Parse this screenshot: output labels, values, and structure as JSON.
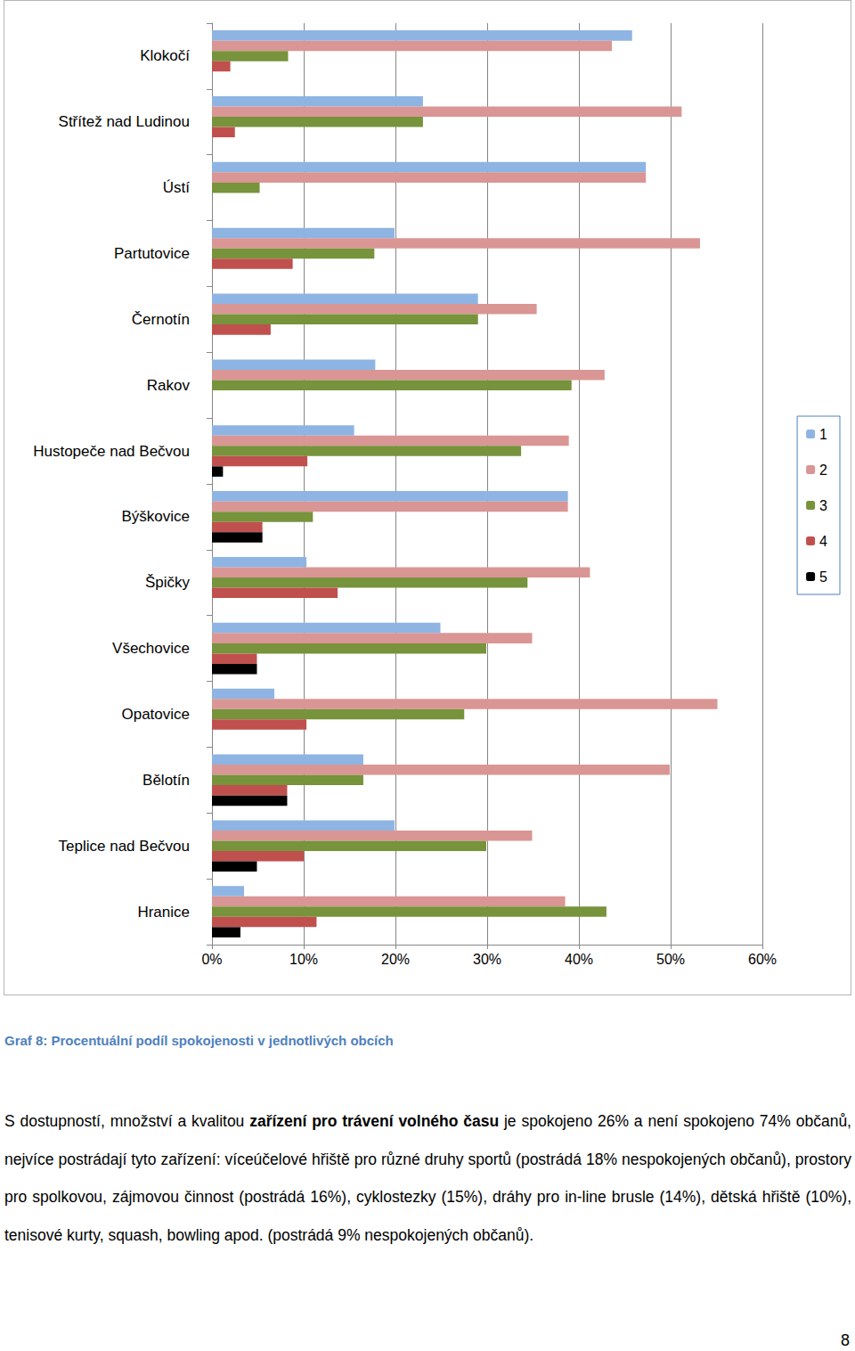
{
  "chart_data": {
    "type": "bar",
    "title": "Graf 8: Procentuální podíl spokojenosti v jednotlivých obcích",
    "orientation": "horizontal",
    "categories": [
      "Klokočí",
      "Střítež nad Ludinou",
      "Ústí",
      "Partutovice",
      "Černotín",
      "Rakov",
      "Hustopeče nad Bečvou",
      "Býškovice",
      "Špičky",
      "Všechovice",
      "Opatovice",
      "Bělotín",
      "Teplice nad Bečvou",
      "Hranice"
    ],
    "series": [
      {
        "name": "1",
        "color": "#8eb4e3",
        "values": [
          45.8,
          23.0,
          47.3,
          19.9,
          29.0,
          17.8,
          15.5,
          38.8,
          10.3,
          24.9,
          6.8,
          16.5,
          19.9,
          3.5
        ]
      },
      {
        "name": "2",
        "color": "#d99694",
        "values": [
          43.6,
          51.2,
          47.3,
          53.2,
          35.4,
          42.8,
          38.9,
          38.8,
          41.2,
          34.9,
          55.1,
          49.9,
          34.9,
          38.5
        ]
      },
      {
        "name": "3",
        "color": "#77933c",
        "values": [
          8.3,
          23.0,
          5.2,
          17.7,
          29.0,
          39.2,
          33.7,
          11.0,
          34.4,
          29.9,
          27.5,
          16.5,
          29.9,
          43.0
        ]
      },
      {
        "name": "4",
        "color": "#c0504d",
        "values": [
          2.0,
          2.5,
          0,
          8.8,
          6.4,
          0,
          10.4,
          5.5,
          13.7,
          4.9,
          10.3,
          8.2,
          10.0,
          11.4
        ]
      },
      {
        "name": "5",
        "color": "#000000",
        "values": [
          0,
          0,
          0,
          0,
          0,
          0,
          1.2,
          5.5,
          0,
          4.9,
          0,
          8.2,
          4.9,
          3.1
        ]
      }
    ],
    "xlim": [
      0,
      60
    ],
    "xticks": [
      {
        "value": 0,
        "label": "0%"
      },
      {
        "value": 10,
        "label": "10%"
      },
      {
        "value": 20,
        "label": "20%"
      },
      {
        "value": 30,
        "label": "30%"
      },
      {
        "value": 40,
        "label": "40%"
      },
      {
        "value": 50,
        "label": "50%"
      },
      {
        "value": 60,
        "label": "60%"
      }
    ],
    "grid": true,
    "legend": "right"
  },
  "document": {
    "paragraph": [
      {
        "text": "S dostupností, množství a kvalitou "
      },
      {
        "text": "zařízení pro trávení volného času",
        "bold": true
      },
      {
        "text": " je spokojeno 26% a není spokojeno 74% občanů, nejvíce postrádají tyto zařízení: víceúčelové hřiště pro různé druhy sportů (postrádá 18% nespokojených občanů), prostory pro spolkovou, zájmovou činnost (postrádá 16%), cyklostezky (15%), dráhy pro in-line brusle (14%), dětská hřiště (10%), tenisové kurty, squash, bowling apod. (postrádá 9% nespokojených občanů)."
      }
    ],
    "page_number": "8"
  }
}
